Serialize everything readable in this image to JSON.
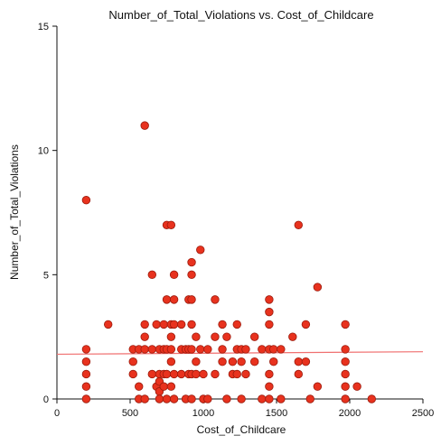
{
  "chart_data": {
    "type": "scatter",
    "title": "Number_of_Total_Violations vs. Cost_of_Childcare",
    "xlabel": "Cost_of_Childcare",
    "ylabel": "Number_of_Total_Violations",
    "xlim": [
      0,
      2500
    ],
    "ylim": [
      0,
      15
    ],
    "xticks": [
      0,
      500,
      1000,
      1500,
      2000,
      2500
    ],
    "yticks": [
      0,
      5,
      10,
      15
    ],
    "grid": false,
    "colors": {
      "point_fill": "#e8321e",
      "point_stroke": "#9a1a0c",
      "trend_line": "#f07070"
    },
    "trend_line": {
      "x": [
        0,
        2500
      ],
      "y": [
        1.8,
        1.9
      ]
    },
    "points": [
      {
        "x": 200,
        "y": 8
      },
      {
        "x": 200,
        "y": 2
      },
      {
        "x": 200,
        "y": 1.5
      },
      {
        "x": 200,
        "y": 1
      },
      {
        "x": 200,
        "y": 0.5
      },
      {
        "x": 200,
        "y": 0
      },
      {
        "x": 350,
        "y": 3
      },
      {
        "x": 520,
        "y": 2
      },
      {
        "x": 520,
        "y": 1.5
      },
      {
        "x": 520,
        "y": 1
      },
      {
        "x": 560,
        "y": 2
      },
      {
        "x": 560,
        "y": 0.5
      },
      {
        "x": 560,
        "y": 0
      },
      {
        "x": 600,
        "y": 11
      },
      {
        "x": 600,
        "y": 3
      },
      {
        "x": 600,
        "y": 2.5
      },
      {
        "x": 600,
        "y": 2
      },
      {
        "x": 600,
        "y": 0
      },
      {
        "x": 650,
        "y": 5
      },
      {
        "x": 650,
        "y": 2
      },
      {
        "x": 650,
        "y": 1
      },
      {
        "x": 680,
        "y": 3
      },
      {
        "x": 680,
        "y": 0.5
      },
      {
        "x": 700,
        "y": 2
      },
      {
        "x": 700,
        "y": 1
      },
      {
        "x": 700,
        "y": 0.7
      },
      {
        "x": 700,
        "y": 0.3
      },
      {
        "x": 700,
        "y": 0
      },
      {
        "x": 730,
        "y": 3
      },
      {
        "x": 730,
        "y": 2
      },
      {
        "x": 730,
        "y": 1
      },
      {
        "x": 730,
        "y": 0.5
      },
      {
        "x": 750,
        "y": 7
      },
      {
        "x": 750,
        "y": 4
      },
      {
        "x": 750,
        "y": 2
      },
      {
        "x": 750,
        "y": 1
      },
      {
        "x": 750,
        "y": 0
      },
      {
        "x": 780,
        "y": 7
      },
      {
        "x": 780,
        "y": 3
      },
      {
        "x": 780,
        "y": 2.5
      },
      {
        "x": 780,
        "y": 2
      },
      {
        "x": 780,
        "y": 1.5
      },
      {
        "x": 780,
        "y": 0.5
      },
      {
        "x": 800,
        "y": 5
      },
      {
        "x": 800,
        "y": 4
      },
      {
        "x": 800,
        "y": 3
      },
      {
        "x": 800,
        "y": 1
      },
      {
        "x": 800,
        "y": 0
      },
      {
        "x": 850,
        "y": 3
      },
      {
        "x": 850,
        "y": 2
      },
      {
        "x": 850,
        "y": 1
      },
      {
        "x": 880,
        "y": 2
      },
      {
        "x": 880,
        "y": 0
      },
      {
        "x": 900,
        "y": 4
      },
      {
        "x": 900,
        "y": 2
      },
      {
        "x": 900,
        "y": 1
      },
      {
        "x": 920,
        "y": 5.5
      },
      {
        "x": 920,
        "y": 5
      },
      {
        "x": 920,
        "y": 4
      },
      {
        "x": 920,
        "y": 3
      },
      {
        "x": 920,
        "y": 2
      },
      {
        "x": 920,
        "y": 1
      },
      {
        "x": 920,
        "y": 0
      },
      {
        "x": 950,
        "y": 2.5
      },
      {
        "x": 950,
        "y": 1.5
      },
      {
        "x": 950,
        "y": 1
      },
      {
        "x": 980,
        "y": 6
      },
      {
        "x": 980,
        "y": 2
      },
      {
        "x": 1000,
        "y": 1
      },
      {
        "x": 1000,
        "y": 0
      },
      {
        "x": 1030,
        "y": 2
      },
      {
        "x": 1030,
        "y": 0
      },
      {
        "x": 1080,
        "y": 4
      },
      {
        "x": 1080,
        "y": 2.5
      },
      {
        "x": 1080,
        "y": 1
      },
      {
        "x": 1130,
        "y": 3
      },
      {
        "x": 1130,
        "y": 2
      },
      {
        "x": 1130,
        "y": 1.5
      },
      {
        "x": 1160,
        "y": 2.5
      },
      {
        "x": 1160,
        "y": 0
      },
      {
        "x": 1200,
        "y": 1.5
      },
      {
        "x": 1200,
        "y": 1
      },
      {
        "x": 1230,
        "y": 3
      },
      {
        "x": 1230,
        "y": 2
      },
      {
        "x": 1230,
        "y": 1
      },
      {
        "x": 1260,
        "y": 2
      },
      {
        "x": 1260,
        "y": 1.5
      },
      {
        "x": 1260,
        "y": 0
      },
      {
        "x": 1290,
        "y": 2
      },
      {
        "x": 1290,
        "y": 1
      },
      {
        "x": 1350,
        "y": 2.5
      },
      {
        "x": 1350,
        "y": 1.5
      },
      {
        "x": 1400,
        "y": 2
      },
      {
        "x": 1400,
        "y": 0
      },
      {
        "x": 1450,
        "y": 4
      },
      {
        "x": 1450,
        "y": 3.5
      },
      {
        "x": 1450,
        "y": 3
      },
      {
        "x": 1450,
        "y": 2
      },
      {
        "x": 1450,
        "y": 1
      },
      {
        "x": 1450,
        "y": 0.5
      },
      {
        "x": 1450,
        "y": 0
      },
      {
        "x": 1480,
        "y": 2
      },
      {
        "x": 1480,
        "y": 1.5
      },
      {
        "x": 1530,
        "y": 2
      },
      {
        "x": 1530,
        "y": 0
      },
      {
        "x": 1610,
        "y": 2.5
      },
      {
        "x": 1650,
        "y": 7
      },
      {
        "x": 1650,
        "y": 1.5
      },
      {
        "x": 1650,
        "y": 1
      },
      {
        "x": 1700,
        "y": 3
      },
      {
        "x": 1700,
        "y": 1.5
      },
      {
        "x": 1730,
        "y": 0
      },
      {
        "x": 1780,
        "y": 4.5
      },
      {
        "x": 1780,
        "y": 0.5
      },
      {
        "x": 1970,
        "y": 3
      },
      {
        "x": 1970,
        "y": 2
      },
      {
        "x": 1970,
        "y": 1.5
      },
      {
        "x": 1970,
        "y": 1
      },
      {
        "x": 1970,
        "y": 0.5
      },
      {
        "x": 1970,
        "y": 0
      },
      {
        "x": 2050,
        "y": 0.5
      },
      {
        "x": 2150,
        "y": 0
      }
    ]
  }
}
